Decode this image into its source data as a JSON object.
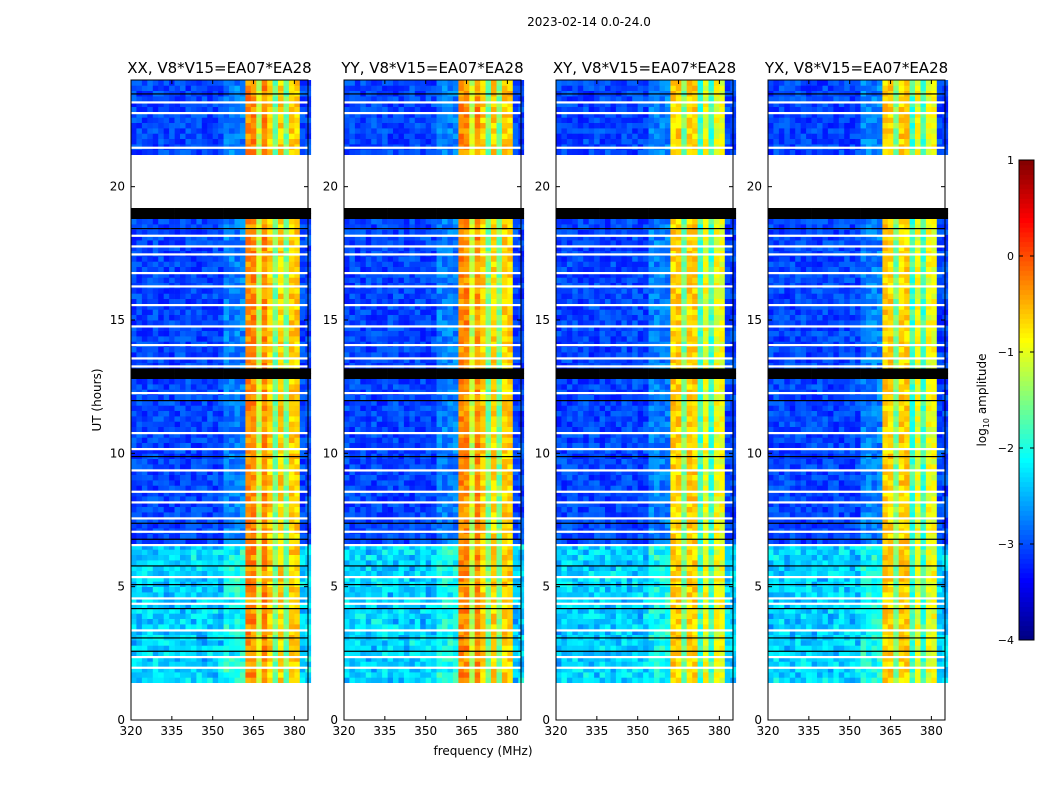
{
  "chart_data": {
    "type": "heatmap",
    "title": "2023-02-14 0.0-24.0",
    "xlabel": "frequency (MHz)",
    "ylabel": "UT (hours)",
    "xlim": [
      320,
      385
    ],
    "ylim": [
      0,
      24
    ],
    "xticks": [
      "320",
      "335",
      "350",
      "365",
      "380"
    ],
    "xtick_values": [
      320,
      335,
      350,
      365,
      380
    ],
    "yticks": [
      "0",
      "5",
      "10",
      "15",
      "20"
    ],
    "ytick_values": [
      0,
      5,
      10,
      15,
      20
    ],
    "panels": [
      {
        "title": "XX, V8*V15=EA07*EA28"
      },
      {
        "title": "YY, V8*V15=EA07*EA28"
      },
      {
        "title": "XY, V8*V15=EA07*EA28"
      },
      {
        "title": "YX, V8*V15=EA07*EA28"
      }
    ],
    "colorbar": {
      "label": "log10 amplitude",
      "label_main": "log",
      "label_sub": "10",
      "label_rest": " amplitude",
      "range": [
        -4,
        1
      ],
      "ticks": [
        "1",
        "0",
        "−1",
        "−2",
        "−3",
        "−4"
      ],
      "tick_values": [
        1,
        0,
        -1,
        -2,
        -3,
        -4
      ],
      "colormap": "jet"
    },
    "data_coverage_hours": [
      1.4,
      21.1
    ],
    "blank_intervals_hours": [
      [
        0,
        1.4
      ],
      [
        19.1,
        21.1
      ]
    ],
    "flagged_black_intervals_hours": [
      [
        12.6,
        13.0
      ],
      [
        18.7,
        19.1
      ]
    ],
    "bright_band_mhz": [
      361,
      381
    ],
    "typical_background_log10": -3.2,
    "typical_band_log10": -0.7
  }
}
